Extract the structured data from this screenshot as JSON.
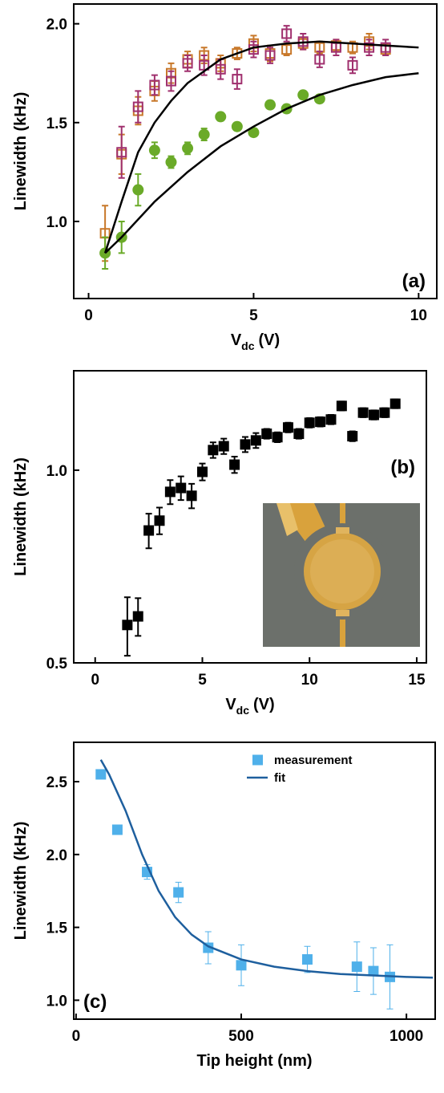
{
  "chart_data": [
    {
      "type": "scatter",
      "annotation": "(a)",
      "ylabel": "Linewidth (kHz)",
      "xlabel": "V",
      "xlabel_sub": "dc",
      "xlabel_unit": "(V)",
      "xlim": [
        -0.45,
        10.55
      ],
      "xticks": [
        0,
        5,
        10
      ],
      "ylim": [
        0.61,
        2.1
      ],
      "yticks": [
        {
          "value": 1,
          "label": "1.0"
        },
        1.5,
        {
          "value": 2,
          "label": "2.0"
        }
      ],
      "series": [
        {
          "marker": "open-square",
          "color": "#c8782a",
          "x": [
            0.5,
            1.0,
            1.5,
            2.0,
            2.5,
            3.0,
            3.5,
            4.0,
            4.5,
            5.0,
            5.5,
            6.0,
            6.5,
            7.0,
            7.5,
            8.0,
            8.5,
            9.0
          ],
          "values": [
            0.94,
            1.34,
            1.56,
            1.66,
            1.75,
            1.82,
            1.84,
            1.8,
            1.85,
            1.9,
            1.85,
            1.87,
            1.9,
            1.88,
            1.89,
            1.88,
            1.91,
            1.87
          ],
          "errors": [
            0.14,
            0.1,
            0.07,
            0.05,
            0.05,
            0.04,
            0.04,
            0.04,
            0.03,
            0.04,
            0.04,
            0.03,
            0.03,
            0.03,
            0.03,
            0.03,
            0.04,
            0.03
          ]
        },
        {
          "marker": "open-square",
          "color": "#a0306e",
          "x": [
            1.0,
            1.5,
            2.0,
            2.5,
            3.0,
            3.5,
            4.0,
            4.5,
            5.0,
            5.5,
            6.0,
            6.5,
            7.0,
            7.5,
            8.0,
            8.5,
            9.0
          ],
          "values": [
            1.35,
            1.58,
            1.69,
            1.71,
            1.8,
            1.79,
            1.77,
            1.72,
            1.87,
            1.84,
            1.95,
            1.91,
            1.82,
            1.88,
            1.79,
            1.88,
            1.88
          ],
          "errors": [
            0.13,
            0.08,
            0.05,
            0.05,
            0.04,
            0.05,
            0.05,
            0.05,
            0.04,
            0.04,
            0.04,
            0.04,
            0.04,
            0.04,
            0.04,
            0.04,
            0.04
          ]
        },
        {
          "marker": "circle",
          "color": "#6aaa28",
          "x": [
            0.5,
            1.0,
            1.5,
            2.0,
            2.5,
            3.0,
            3.5,
            4.0,
            4.5,
            5.0,
            5.5,
            6.0,
            6.5,
            7.0
          ],
          "values": [
            0.84,
            0.92,
            1.16,
            1.36,
            1.3,
            1.37,
            1.44,
            1.53,
            1.48,
            1.45,
            1.59,
            1.57,
            1.64,
            1.62
          ],
          "errors": [
            0.08,
            0.08,
            0.08,
            0.04,
            0.03,
            0.03,
            0.03,
            0.02,
            0.02,
            0.02,
            0.02,
            0.02,
            0.02,
            0.02
          ]
        },
        {
          "marker": "line",
          "color": "#000000",
          "x": [
            0.5,
            1,
            1.5,
            2,
            2.5,
            3,
            4,
            5,
            6,
            7,
            8,
            9,
            10
          ],
          "values": [
            0.84,
            1.1,
            1.35,
            1.5,
            1.61,
            1.7,
            1.82,
            1.88,
            1.9,
            1.91,
            1.9,
            1.89,
            1.88
          ]
        },
        {
          "marker": "line",
          "color": "#000000",
          "x": [
            0.5,
            1,
            2,
            3,
            4,
            5,
            6,
            7,
            8,
            9,
            10
          ],
          "values": [
            0.84,
            0.92,
            1.1,
            1.25,
            1.38,
            1.48,
            1.57,
            1.64,
            1.69,
            1.73,
            1.75
          ]
        }
      ]
    },
    {
      "type": "scatter",
      "annotation": "(b)",
      "ylabel": "Linewidth (kHz)",
      "xlabel": "V",
      "xlabel_sub": "dc",
      "xlabel_unit": "(V)",
      "xlim": [
        -1,
        15.45
      ],
      "xticks": [
        0,
        5,
        10,
        15
      ],
      "ylim": [
        0.5,
        1.43
      ],
      "ylog": true,
      "yticks": [
        0.5,
        {
          "value": 1,
          "label": "1.0"
        }
      ],
      "series": [
        {
          "marker": "square",
          "color": "#000000",
          "x": [
            1.5,
            2.0,
            2.5,
            3.0,
            3.5,
            4.0,
            4.5,
            5.0,
            5.5,
            6.0,
            6.5,
            7.0,
            7.5,
            8.0,
            8.5,
            9.0,
            9.5,
            10.0,
            10.5,
            11.0,
            11.5,
            12.0,
            12.5,
            13.0,
            13.5,
            14.0
          ],
          "values": [
            0.573,
            0.591,
            0.805,
            0.834,
            0.925,
            0.938,
            0.912,
            0.994,
            1.075,
            1.09,
            1.02,
            1.097,
            1.113,
            1.14,
            1.126,
            1.166,
            1.14,
            1.186,
            1.19,
            1.2,
            1.26,
            1.13,
            1.23,
            1.22,
            1.23,
            1.27
          ],
          "errors": [
            0.06,
            0.04,
            0.05,
            0.04,
            0.04,
            0.04,
            0.04,
            0.03,
            0.03,
            0.03,
            0.03,
            0.03,
            0.03,
            0.02,
            0.02,
            0.02,
            0.02,
            0.02,
            0.02,
            0.02,
            0.02,
            0.02,
            0.02,
            0.02,
            0.02,
            0.02
          ]
        }
      ]
    },
    {
      "type": "scatter",
      "annotation": "(c)",
      "ylabel": "Linewidth (kHz)",
      "xlabel": "Tip height (nm)",
      "xlim": [
        -7,
        1087
      ],
      "xticks": [
        0,
        500,
        1000
      ],
      "ylim": [
        0.87,
        2.77
      ],
      "yticks": [
        {
          "value": 1,
          "label": "1.0"
        },
        1.5,
        {
          "value": 2,
          "label": "2.0"
        },
        2.5
      ],
      "legend": "upper right",
      "series": [
        {
          "name": "measurement",
          "marker": "square",
          "color": "#4fb0ea",
          "x": [
            75,
            125,
            215,
            310,
            400,
            500,
            700,
            850,
            900,
            950
          ],
          "values": [
            2.55,
            2.17,
            1.88,
            1.74,
            1.36,
            1.24,
            1.28,
            1.23,
            1.2,
            1.16
          ],
          "errors": [
            0.02,
            0.03,
            0.05,
            0.07,
            0.11,
            0.14,
            0.09,
            0.17,
            0.16,
            0.22
          ]
        },
        {
          "name": "fit",
          "marker": "line",
          "color": "#1e5f9e",
          "x": [
            75,
            100,
            150,
            200,
            250,
            300,
            350,
            400,
            500,
            600,
            700,
            800,
            900,
            1000,
            1080
          ],
          "values": [
            2.65,
            2.55,
            2.3,
            2.0,
            1.75,
            1.57,
            1.45,
            1.37,
            1.28,
            1.23,
            1.2,
            1.18,
            1.17,
            1.16,
            1.155
          ]
        }
      ]
    }
  ]
}
